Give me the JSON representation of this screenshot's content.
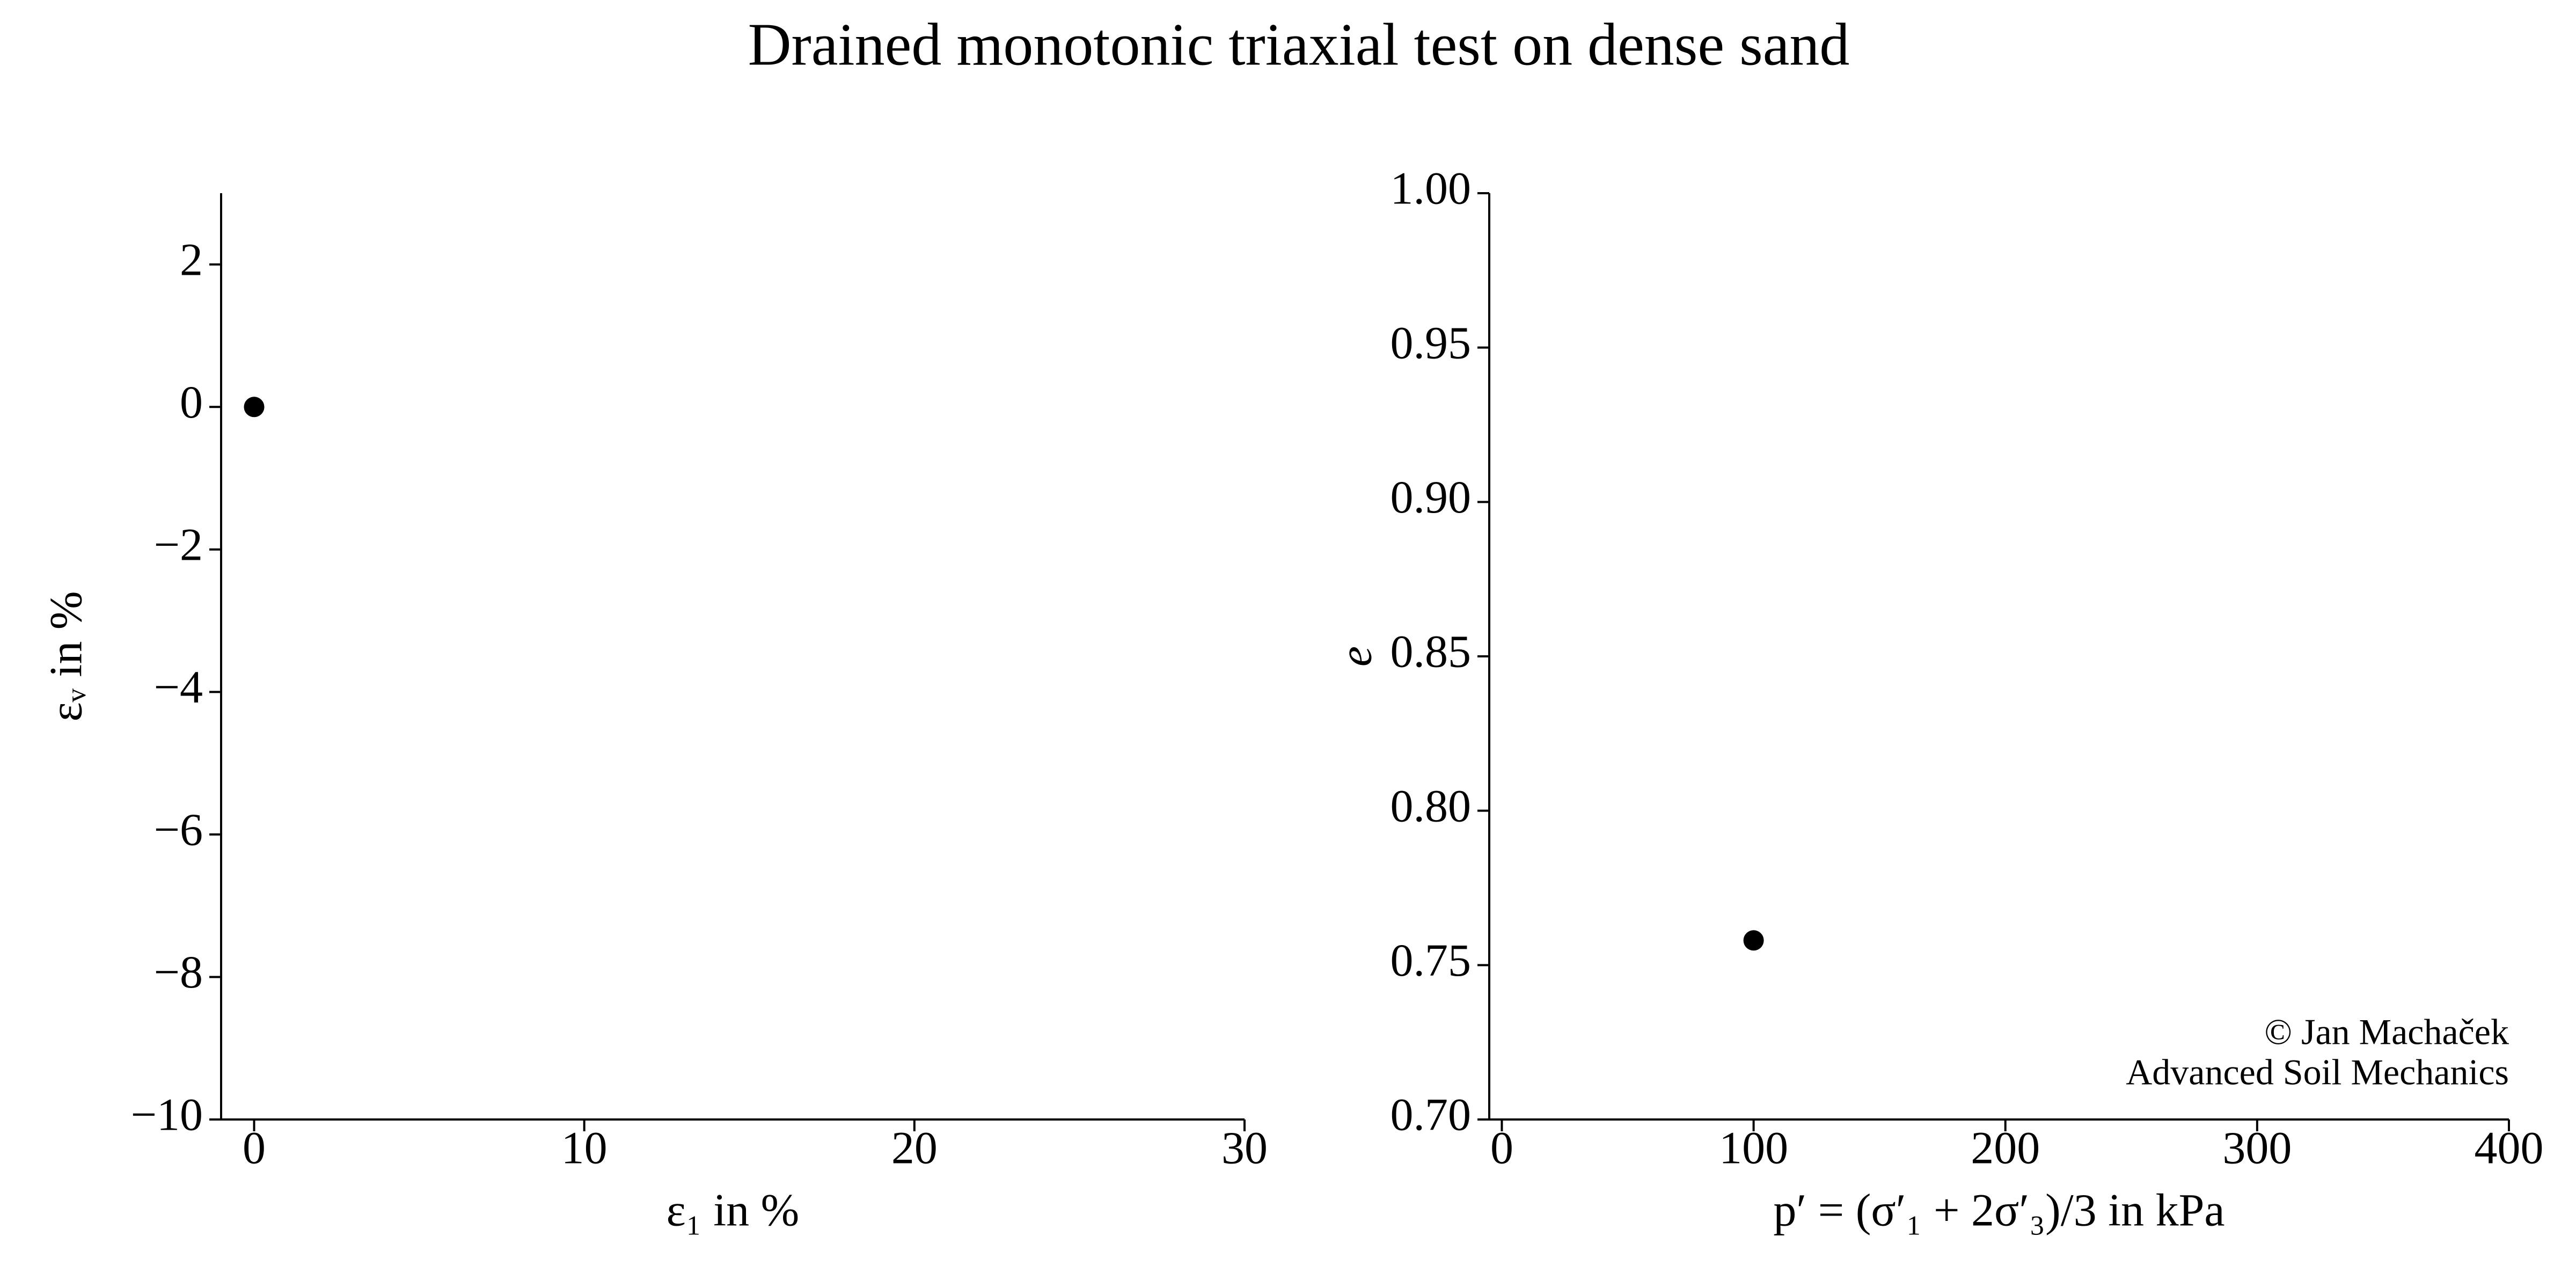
{
  "title": "Drained monotonic triaxial test on dense sand",
  "chart_data": [
    {
      "type": "scatter",
      "xlabel": "ε₁ in %",
      "ylabel": "εᵥ in %",
      "x": [
        0
      ],
      "values": [
        0
      ],
      "color": "#000000",
      "xlim": [
        -1,
        30
      ],
      "ylim": [
        -10,
        3
      ],
      "xticks": [
        0,
        10,
        20,
        30
      ],
      "yticks": [
        {
          "value": -10,
          "label": "−10"
        },
        {
          "value": -8,
          "label": "−8"
        },
        {
          "value": -6,
          "label": "−6"
        },
        {
          "value": -4,
          "label": "−4"
        },
        {
          "value": -2,
          "label": "−2"
        },
        0,
        2
      ],
      "grid": false
    },
    {
      "type": "scatter",
      "xlabel": "p′ = (σ′₁ + 2σ′₃)/3 in kPa",
      "ylabel": "e",
      "x": [
        100
      ],
      "values": [
        0.758
      ],
      "color": "#000000",
      "xlim": [
        -5,
        400
      ],
      "ylim": [
        0.7,
        1.0
      ],
      "xticks": [
        0,
        100,
        200,
        300,
        400
      ],
      "yticks": [
        {
          "value": 0.7,
          "label": "0.70"
        },
        0.75,
        {
          "value": 0.8,
          "label": "0.80"
        },
        0.85,
        {
          "value": 0.9,
          "label": "0.90"
        },
        0.95,
        {
          "value": 1.0,
          "label": "1.00"
        }
      ],
      "grid": false,
      "annotations": [
        "© Jan Machaček",
        "Advanced Soil Mechanics"
      ]
    }
  ]
}
